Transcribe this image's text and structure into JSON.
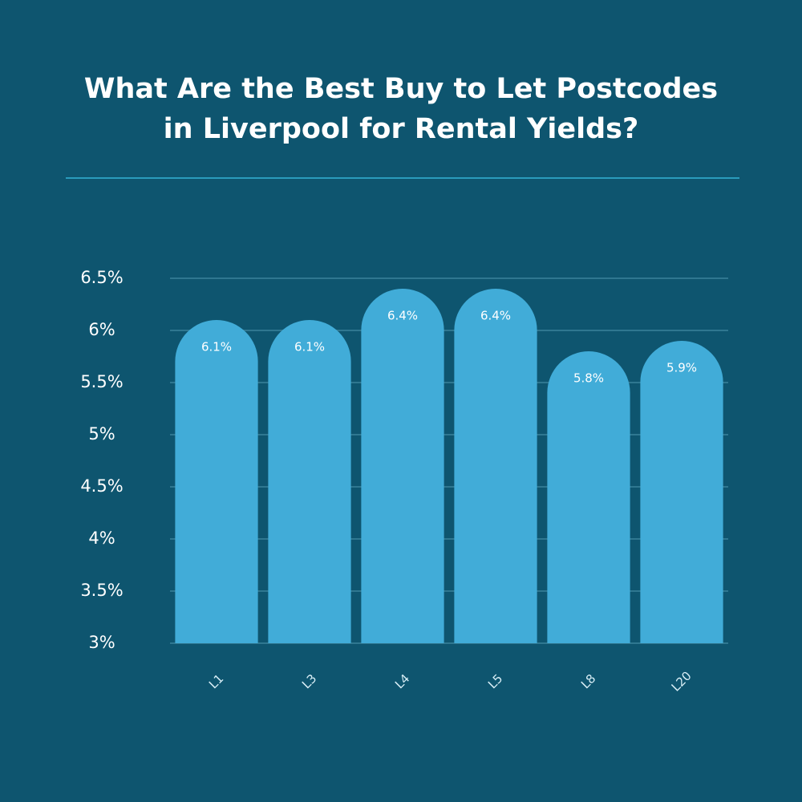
{
  "chart_data": {
    "type": "bar",
    "title": [
      "What Are the Best Buy to Let Postcodes",
      "in Liverpool for Rental Yields?"
    ],
    "categories": [
      "L1",
      "L3",
      "L4",
      "L5",
      "L8",
      "L20"
    ],
    "values": [
      6.1,
      6.1,
      6.4,
      6.4,
      5.8,
      5.9
    ],
    "value_labels": [
      "6.1%",
      "6.1%",
      "6.4%",
      "6.4%",
      "5.8%",
      "5.9%"
    ],
    "color": "#41acd8",
    "ylim": [
      3,
      6.5
    ],
    "yticks": [
      {
        "value": 3,
        "label": "3%"
      },
      {
        "value": 3.5,
        "label": "3.5%"
      },
      {
        "value": 4,
        "label": "4%"
      },
      {
        "value": 4.5,
        "label": "4.5%"
      },
      {
        "value": 5,
        "label": "5%"
      },
      {
        "value": 5.5,
        "label": "5.5%"
      },
      {
        "value": 6,
        "label": "6%"
      },
      {
        "value": 6.5,
        "label": "6.5%"
      }
    ],
    "grid": true
  }
}
